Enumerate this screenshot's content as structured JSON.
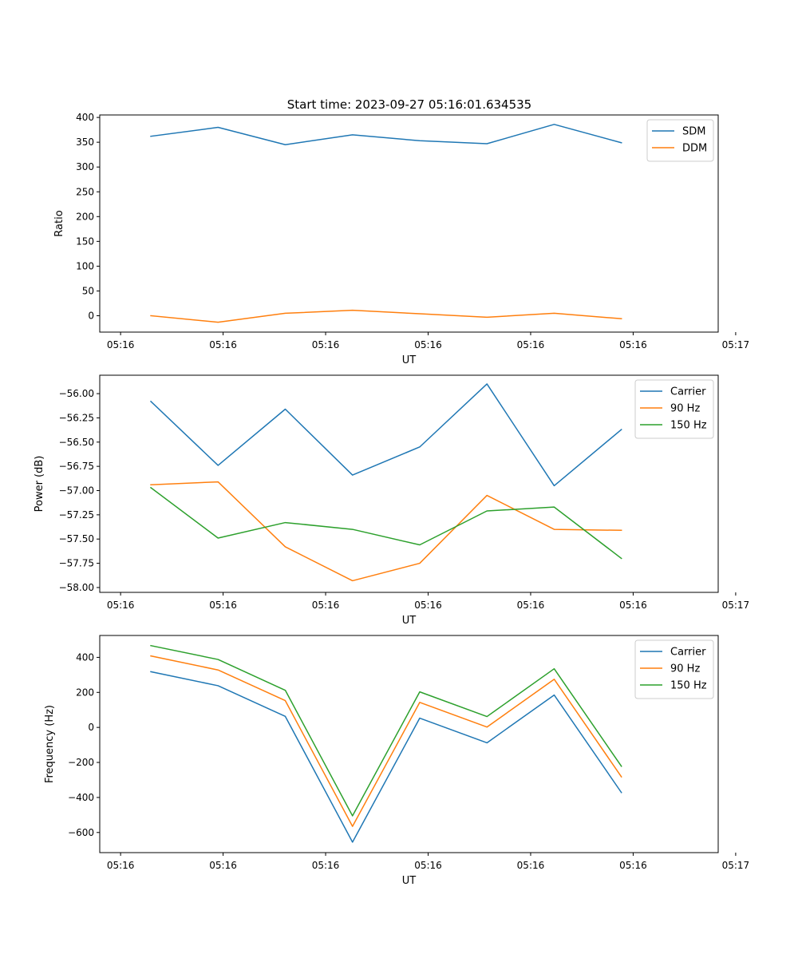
{
  "title": "Start time: 2023-09-27 05:16:01.634535",
  "chart_data": [
    {
      "type": "line",
      "ylabel": "Ratio",
      "xlabel": "UT",
      "ylim": [
        -33,
        405
      ],
      "yticks": [
        0,
        50,
        100,
        150,
        200,
        250,
        300,
        350,
        400
      ],
      "x": [
        1,
        2,
        3,
        4,
        5,
        6,
        7,
        8
      ],
      "xlim": [
        0.24,
        9.44
      ],
      "xticks": [
        0.55,
        2.075,
        3.6,
        5.125,
        6.65,
        8.175,
        9.7
      ],
      "xticklabels": [
        "05:16",
        "05:16",
        "05:16",
        "05:16",
        "05:16",
        "05:16",
        "05:17"
      ],
      "legend_position": "top-right",
      "series": [
        {
          "name": "SDM",
          "color": "#1f77b4",
          "values": [
            362,
            380,
            345,
            365,
            353,
            347,
            386,
            349
          ]
        },
        {
          "name": "DDM",
          "color": "#ff7f0e",
          "values": [
            0,
            -13,
            5,
            11,
            4,
            -3,
            5,
            -6
          ]
        }
      ]
    },
    {
      "type": "line",
      "ylabel": "Power (dB)",
      "xlabel": "UT",
      "ylim": [
        -58.05,
        -55.81
      ],
      "yticks": [
        -58.0,
        -57.75,
        -57.5,
        -57.25,
        -57.0,
        -56.75,
        -56.5,
        -56.25,
        -56.0
      ],
      "yticklabels": [
        "−58.00",
        "−57.75",
        "−57.50",
        "−57.25",
        "−57.00",
        "−56.75",
        "−56.50",
        "−56.25",
        "−56.00"
      ],
      "x": [
        1,
        2,
        3,
        4,
        5,
        6,
        7,
        8
      ],
      "xlim": [
        0.24,
        9.44
      ],
      "xticks": [
        0.55,
        2.075,
        3.6,
        5.125,
        6.65,
        8.175,
        9.7
      ],
      "xticklabels": [
        "05:16",
        "05:16",
        "05:16",
        "05:16",
        "05:16",
        "05:16",
        "05:17"
      ],
      "legend_position": "top-right",
      "series": [
        {
          "name": "Carrier",
          "color": "#1f77b4",
          "values": [
            -56.08,
            -56.74,
            -56.16,
            -56.84,
            -56.55,
            -55.9,
            -56.95,
            -56.37
          ]
        },
        {
          "name": "90 Hz",
          "color": "#ff7f0e",
          "values": [
            -56.94,
            -56.91,
            -57.58,
            -57.93,
            -57.75,
            -57.05,
            -57.4,
            -57.41
          ]
        },
        {
          "name": "150 Hz",
          "color": "#2ca02c",
          "values": [
            -56.97,
            -57.49,
            -57.33,
            -57.4,
            -57.56,
            -57.21,
            -57.17,
            -57.7
          ]
        }
      ]
    },
    {
      "type": "line",
      "ylabel": "Frequency (Hz)",
      "xlabel": "UT",
      "ylim": [
        -715,
        525
      ],
      "yticks": [
        -600,
        -400,
        -200,
        0,
        200,
        400
      ],
      "yticklabels": [
        "−600",
        "−400",
        "−200",
        "0",
        "200",
        "400"
      ],
      "x": [
        1,
        2,
        3,
        4,
        5,
        6,
        7,
        8
      ],
      "xlim": [
        0.24,
        9.44
      ],
      "xticks": [
        0.55,
        2.075,
        3.6,
        5.125,
        6.65,
        8.175,
        9.7
      ],
      "xticklabels": [
        "05:16",
        "05:16",
        "05:16",
        "05:16",
        "05:16",
        "05:16",
        "05:17"
      ],
      "legend_position": "top-right",
      "series": [
        {
          "name": "Carrier",
          "color": "#1f77b4",
          "values": [
            318,
            238,
            63,
            -655,
            53,
            -88,
            185,
            -372
          ]
        },
        {
          "name": "90 Hz",
          "color": "#ff7f0e",
          "values": [
            408,
            328,
            153,
            -565,
            143,
            2,
            275,
            -282
          ]
        },
        {
          "name": "150 Hz",
          "color": "#2ca02c",
          "values": [
            467,
            388,
            212,
            -505,
            203,
            62,
            335,
            -222
          ]
        }
      ]
    }
  ]
}
